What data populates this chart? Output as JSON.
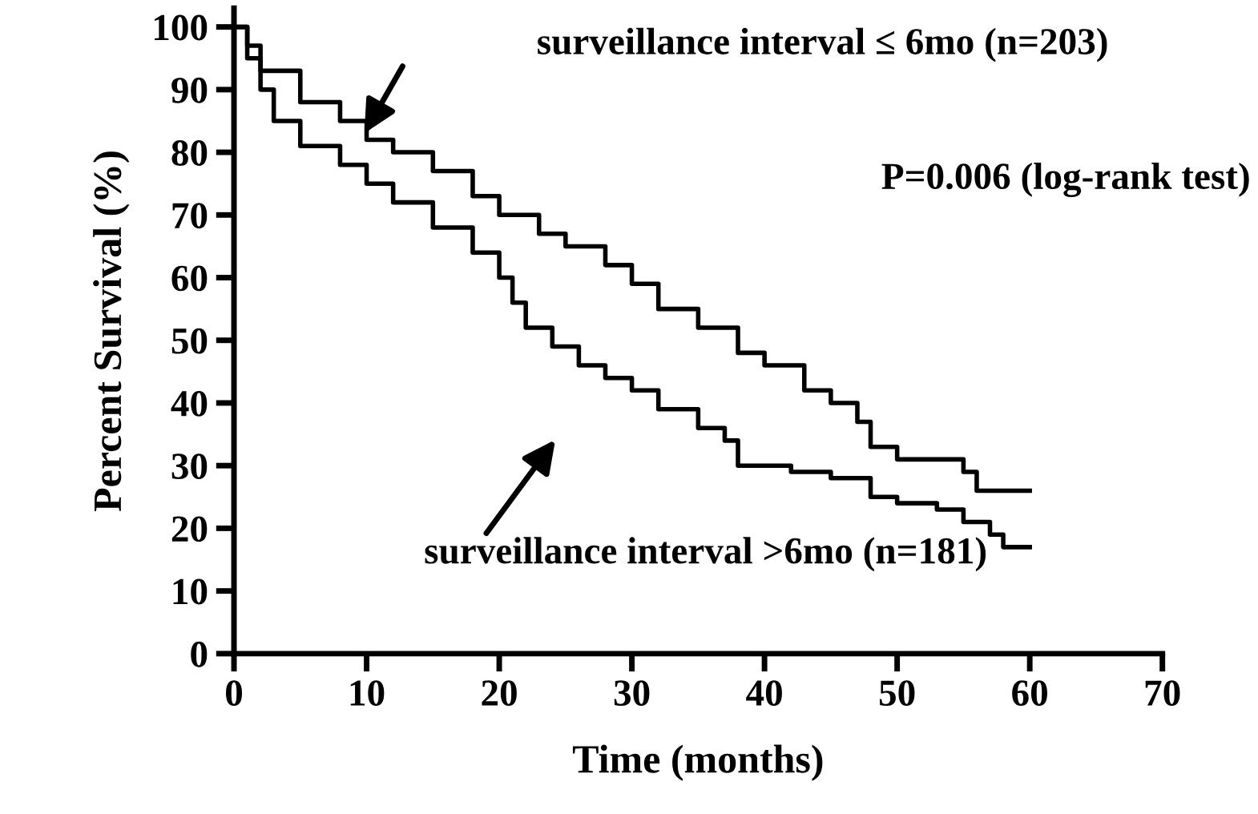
{
  "chart_data": {
    "type": "step",
    "xlabel": "Time (months)",
    "ylabel": "Percent Survival (%)",
    "xlim": [
      0,
      70
    ],
    "xticks": [
      0,
      10,
      20,
      30,
      40,
      50,
      60,
      70
    ],
    "ylim": [
      0,
      103
    ],
    "yticks": [
      0,
      10,
      20,
      30,
      40,
      50,
      60,
      70,
      80,
      90,
      100
    ],
    "grid": false,
    "legend": false,
    "marker": "none",
    "line_style": "solid",
    "series": [
      {
        "color": "#000000",
        "x": [
          0,
          1,
          2,
          5,
          8,
          10,
          12,
          15,
          18,
          20,
          23,
          25,
          28,
          30,
          32,
          35,
          38,
          40,
          43,
          45,
          47,
          48,
          50,
          53,
          55,
          56,
          58,
          60
        ],
        "values": [
          100,
          97,
          93,
          88,
          85,
          82,
          80,
          77,
          73,
          70,
          67,
          65,
          62,
          59,
          55,
          52,
          48,
          46,
          42,
          40,
          37,
          33,
          31,
          31,
          29,
          26,
          26,
          26
        ]
      },
      {
        "color": "#000000",
        "x": [
          0,
          1,
          2,
          3,
          5,
          8,
          10,
          12,
          15,
          18,
          20,
          21,
          22,
          24,
          26,
          28,
          30,
          32,
          35,
          37,
          38,
          42,
          45,
          48,
          50,
          53,
          55,
          57,
          58,
          60
        ],
        "values": [
          100,
          95,
          90,
          85,
          81,
          78,
          75,
          72,
          68,
          64,
          60,
          56,
          52,
          49,
          46,
          44,
          42,
          39,
          36,
          34,
          30,
          29,
          28,
          25,
          24,
          23,
          21,
          19,
          17,
          17
        ]
      }
    ],
    "annotations": [
      "surveillance interval ≤ 6mo (n=203)",
      "surveillance interval >6mo (n=181)",
      "P=0.006 (log-rank test)"
    ]
  }
}
